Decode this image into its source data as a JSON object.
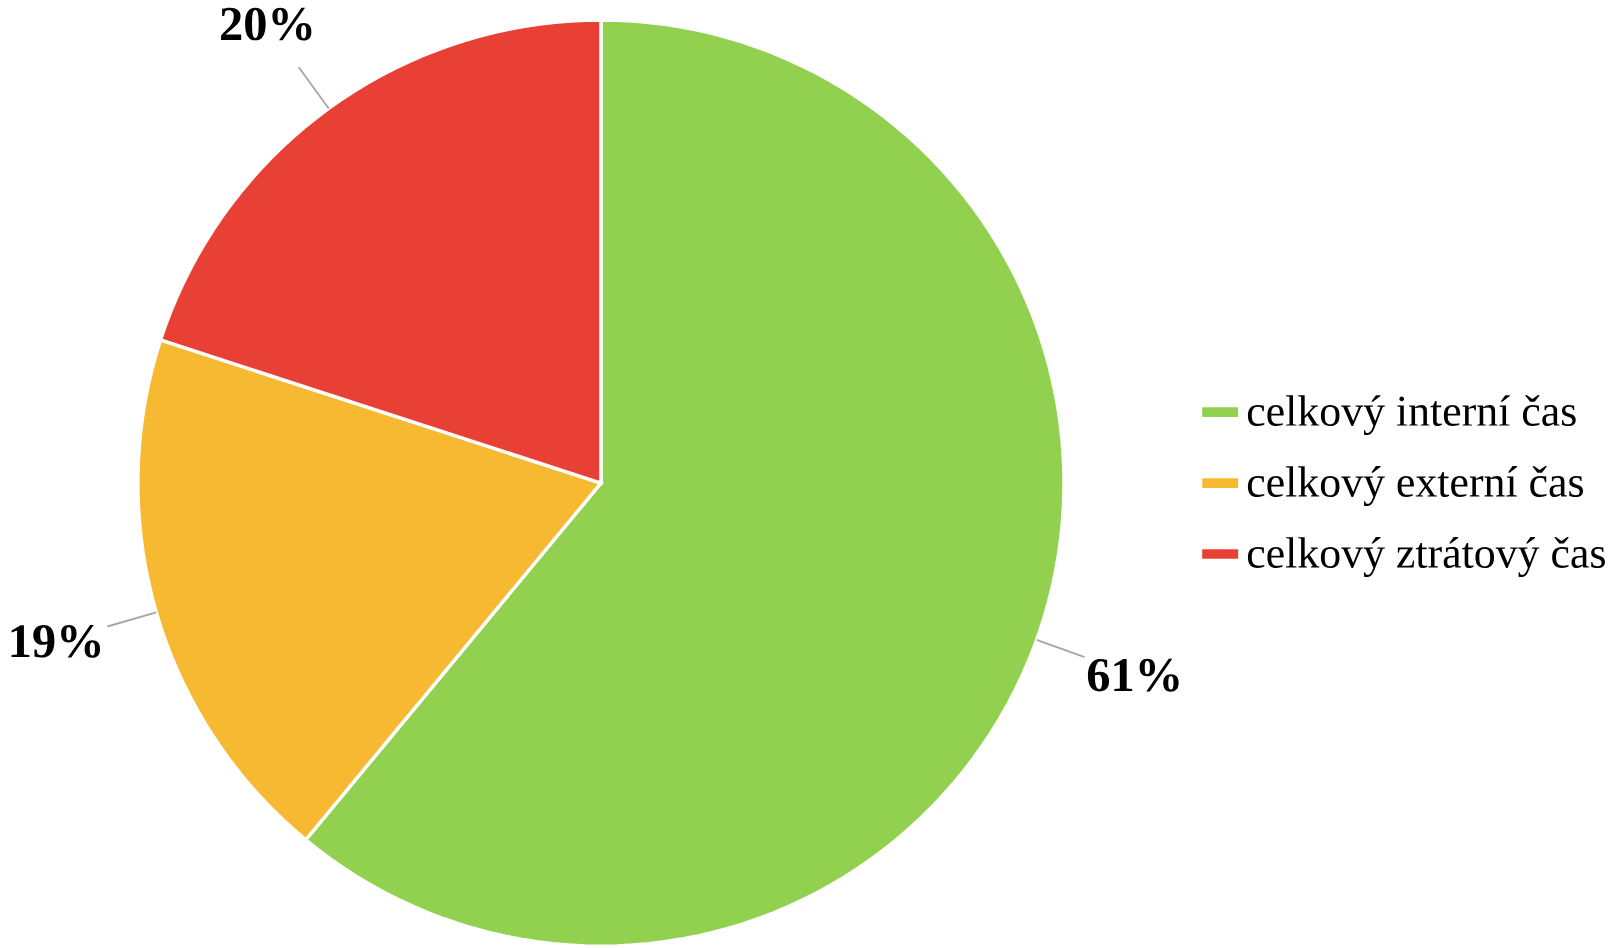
{
  "chart_data": {
    "type": "pie",
    "categories": [
      "celkový interní čas",
      "celkový externí čas",
      "celkový ztrátový čas"
    ],
    "values": [
      61,
      19,
      20
    ],
    "colors": [
      "#92d050",
      "#f8b932",
      "#e84034"
    ],
    "value_labels": [
      "61%",
      "19%",
      "20%"
    ],
    "legend": "right"
  }
}
